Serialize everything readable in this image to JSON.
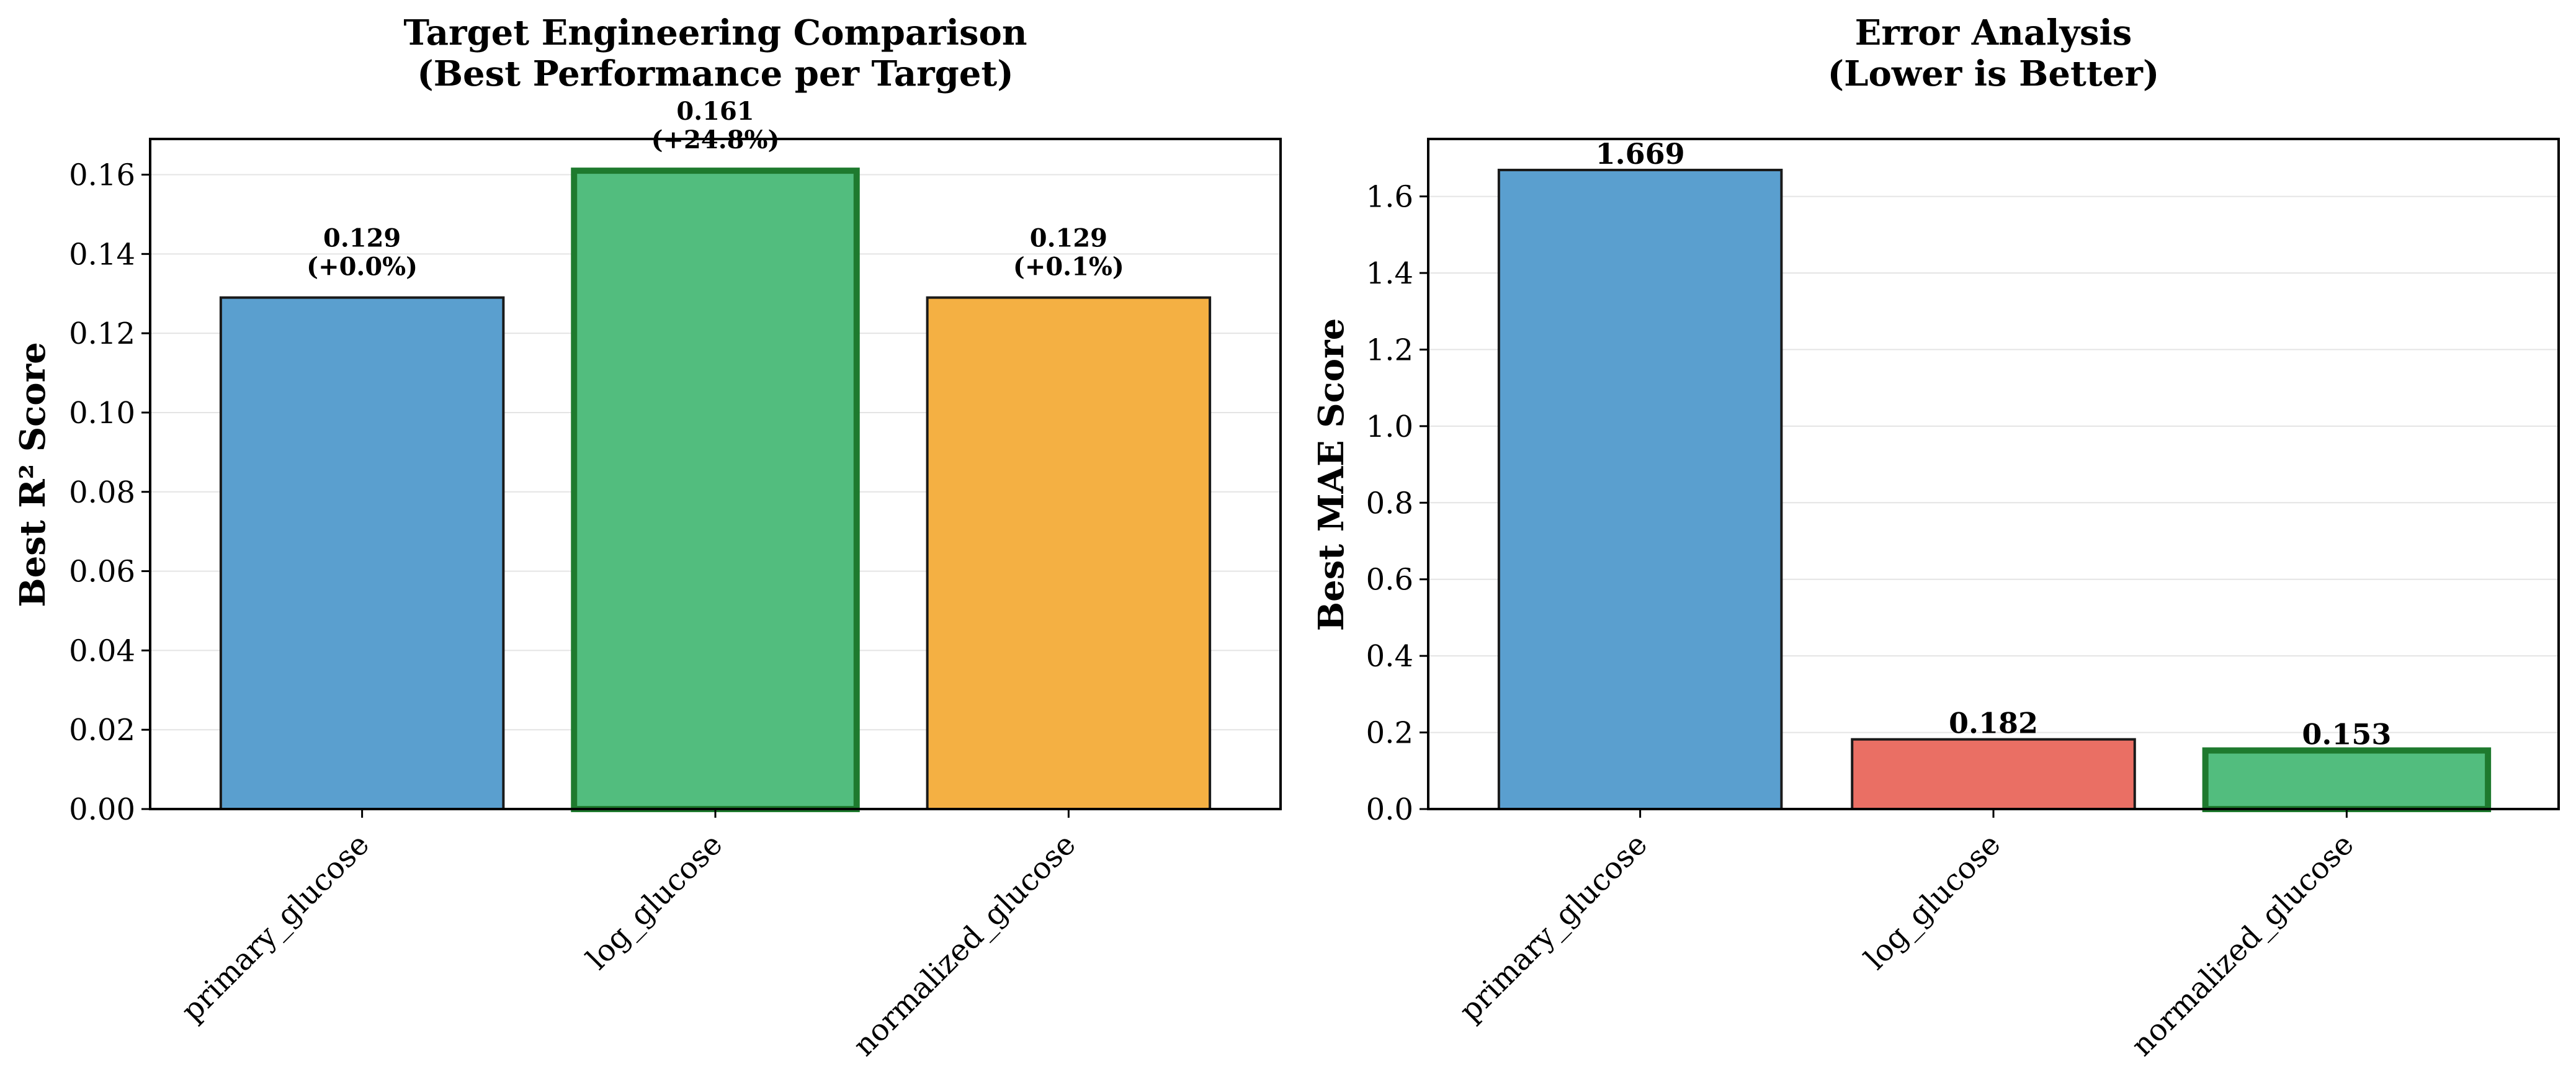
{
  "chart_data": [
    {
      "type": "bar",
      "title": [
        "Target Engineering Comparison",
        "(Best Performance per Target)"
      ],
      "xlabel": "",
      "ylabel": "Best R² Score",
      "categories": [
        "primary_glucose",
        "log_glucose",
        "normalized_glucose"
      ],
      "values": [
        0.129,
        0.161,
        0.129
      ],
      "value_labels": [
        "0.129",
        "0.161",
        "0.129"
      ],
      "delta_labels": [
        "(+0.0%)",
        "(+24.8%)",
        "(+0.1%)"
      ],
      "bar_colors": [
        "#5a9fcf",
        "#52bd7e",
        "#f4b043"
      ],
      "highlight_index": 1,
      "highlight_color": "#1e7a2e",
      "ylim": [
        0,
        0.169
      ],
      "yticks": [
        0,
        0.02,
        0.04,
        0.06,
        0.08,
        0.1,
        0.12,
        0.14,
        0.16
      ],
      "ytick_labels": [
        "0.00",
        "0.02",
        "0.04",
        "0.06",
        "0.08",
        "0.10",
        "0.12",
        "0.14",
        "0.16"
      ],
      "grid": true
    },
    {
      "type": "bar",
      "title": [
        "Error Analysis",
        "(Lower is Better)"
      ],
      "xlabel": "",
      "ylabel": "Best MAE Score",
      "categories": [
        "primary_glucose",
        "log_glucose",
        "normalized_glucose"
      ],
      "values": [
        1.669,
        0.182,
        0.153
      ],
      "value_labels": [
        "1.669",
        "0.182",
        "0.153"
      ],
      "bar_colors": [
        "#5a9fcf",
        "#ea6f64",
        "#52bd7e"
      ],
      "highlight_index": 2,
      "highlight_color": "#1e7a2e",
      "ylim": [
        0,
        1.75
      ],
      "yticks": [
        0,
        0.2,
        0.4,
        0.6,
        0.8,
        1.0,
        1.2,
        1.4,
        1.6
      ],
      "ytick_labels": [
        "0.0",
        "0.2",
        "0.4",
        "0.6",
        "0.8",
        "1.0",
        "1.2",
        "1.4",
        "1.6"
      ],
      "grid": true
    }
  ]
}
